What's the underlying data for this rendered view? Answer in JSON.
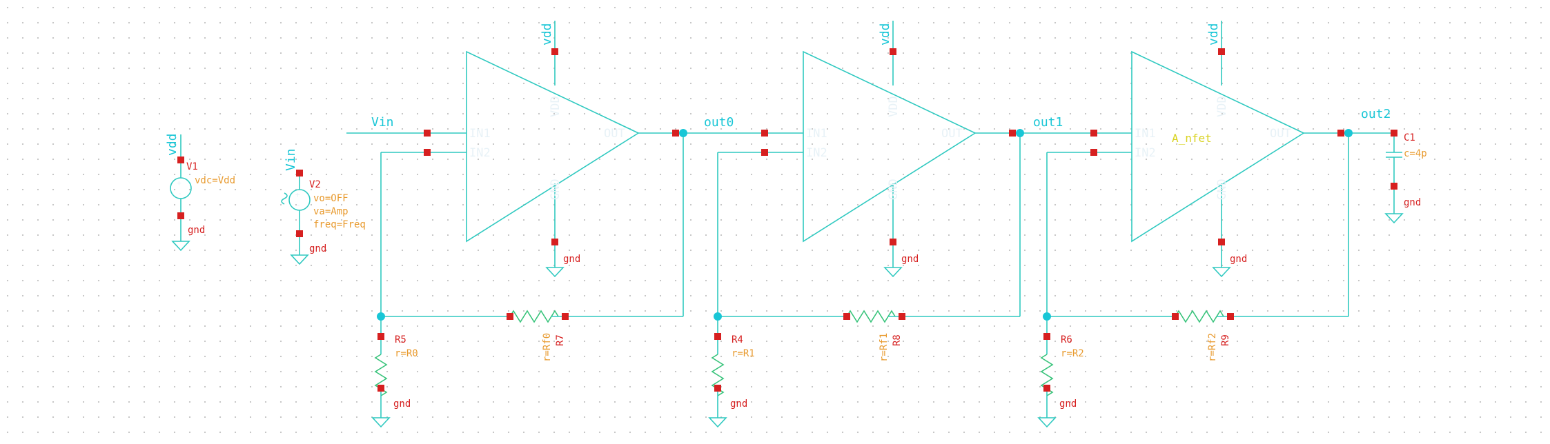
{
  "colors": {
    "wire": "#2fc9c0",
    "pin": "#d62020",
    "net_label": "#19c6d6",
    "property": "#e89a2e",
    "instance_name": "#d62020",
    "cell_name": "#d8d21c",
    "resistor": "#37c37a",
    "grid_dot": "#c4c4c4"
  },
  "nets": {
    "vin": "Vin",
    "out0": "out0",
    "out1": "out1",
    "out2": "out2",
    "vdd": "vdd",
    "gnd": "gnd"
  },
  "pins": {
    "in1": "IN1",
    "in2": "IN2",
    "out": "OUT",
    "vdd": "VDD",
    "gnd": "GND"
  },
  "amp3_cell": "A_nfet",
  "sources": {
    "v1": {
      "name": "V1",
      "prop": "vdc=Vdd",
      "net": "vdd"
    },
    "v2": {
      "name": "V2",
      "net": "Vin",
      "props": [
        "vo=OFF",
        "va=Amp",
        "freq=Freq"
      ]
    }
  },
  "resistors": {
    "r5": {
      "name": "R5",
      "prop": "r=R0"
    },
    "r4": {
      "name": "R4",
      "prop": "r=R1"
    },
    "r6": {
      "name": "R6",
      "prop": "r=R2"
    },
    "r7": {
      "name": "R7",
      "prop": "r=Rf0"
    },
    "r8": {
      "name": "R8",
      "prop": "r=Rf1"
    },
    "r9": {
      "name": "R9",
      "prop": "r=Rf2"
    }
  },
  "capacitor": {
    "name": "C1",
    "prop": "c=4p"
  }
}
